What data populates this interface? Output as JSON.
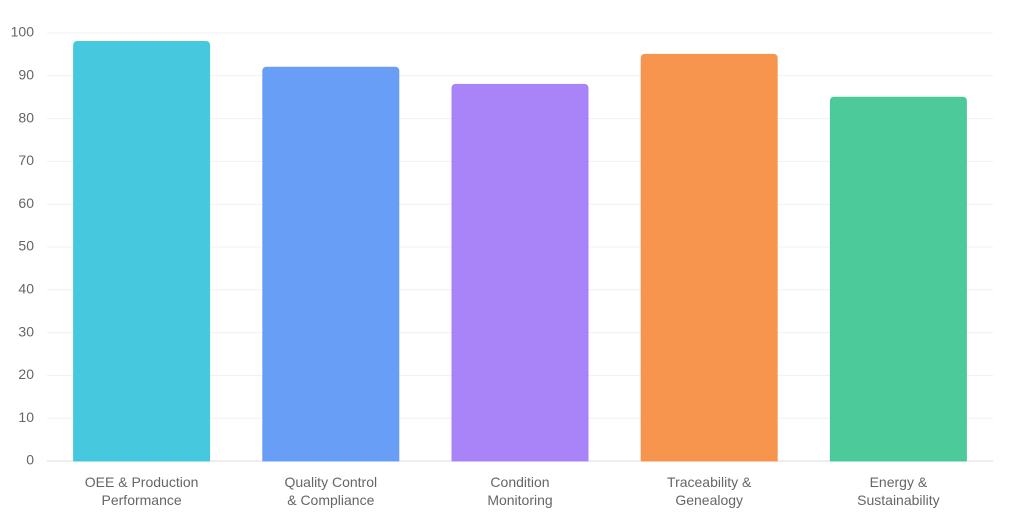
{
  "chart_data": {
    "type": "bar",
    "categories": [
      "OEE & Production\nPerformance",
      "Quality Control\n& Compliance",
      "Condition\nMonitoring",
      "Traceability &\nGenealogy",
      "Energy &\nSustainability"
    ],
    "values": [
      98,
      92,
      88,
      95,
      85
    ],
    "colors": [
      "#3cc6dc",
      "#6199f7",
      "#a47cf8",
      "#f78f45",
      "#43c795"
    ],
    "ylim": [
      0,
      100
    ],
    "yticks": [
      0,
      10,
      20,
      30,
      40,
      50,
      60,
      70,
      80,
      90,
      100
    ],
    "grid": true
  }
}
